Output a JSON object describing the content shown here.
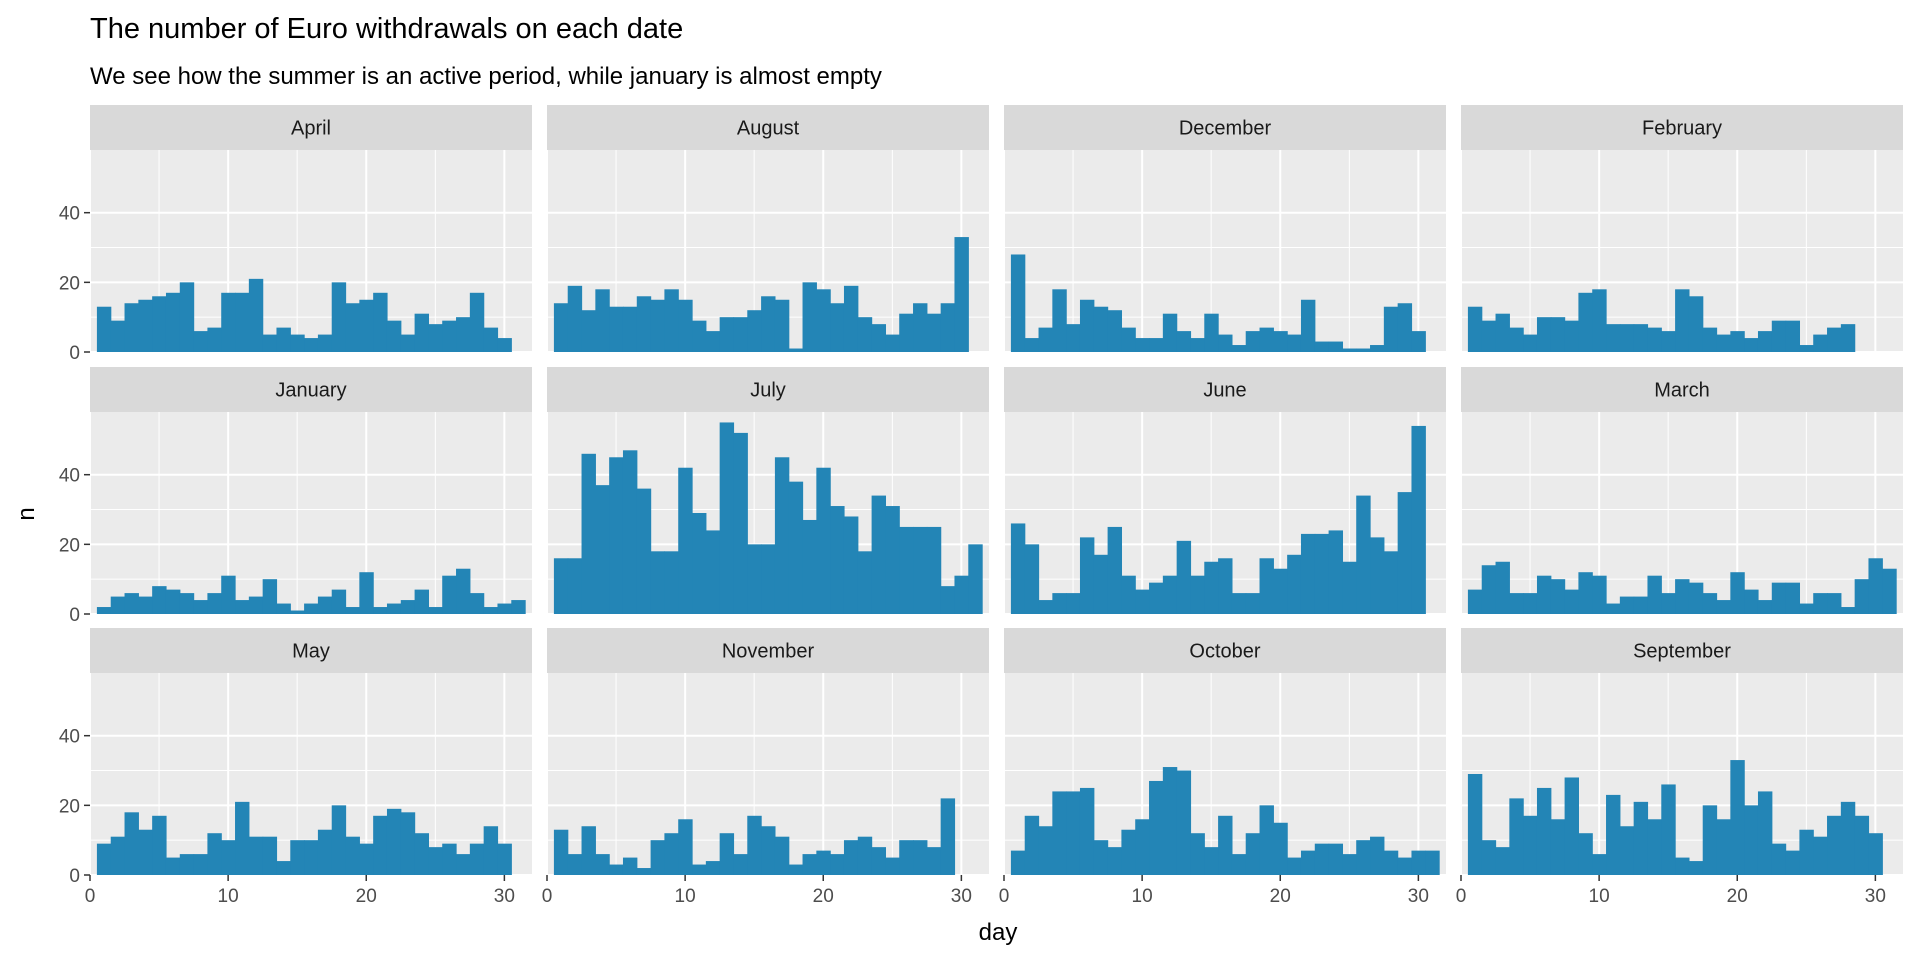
{
  "chart_data": {
    "type": "bar",
    "title": "The number of Euro withdrawals on each date",
    "subtitle": "We see how the summer is an active period, while january is almost empty",
    "xlabel": "day",
    "ylabel": "n",
    "xlim": [
      0,
      32
    ],
    "ylim": [
      0,
      58
    ],
    "x_ticks": [
      0,
      10,
      20,
      30
    ],
    "y_ticks": [
      0,
      20,
      40
    ],
    "grid": true,
    "bar_color": "#2385b6",
    "panel_background": "#ebebeb",
    "strip_background": "#d9d9d9",
    "panels": [
      {
        "name": "April",
        "days": [
          1,
          2,
          3,
          4,
          5,
          6,
          7,
          8,
          9,
          10,
          11,
          12,
          13,
          14,
          15,
          16,
          17,
          18,
          19,
          20,
          21,
          22,
          23,
          24,
          25,
          26,
          27,
          28,
          29,
          30
        ],
        "values": [
          13,
          9,
          14,
          15,
          16,
          17,
          20,
          6,
          7,
          17,
          17,
          21,
          5,
          7,
          5,
          4,
          5,
          20,
          14,
          15,
          17,
          9,
          5,
          11,
          8,
          9,
          10,
          17,
          7,
          4
        ]
      },
      {
        "name": "August",
        "days": [
          1,
          2,
          3,
          4,
          5,
          6,
          7,
          8,
          9,
          10,
          11,
          12,
          13,
          14,
          15,
          16,
          17,
          18,
          19,
          20,
          21,
          22,
          23,
          24,
          25,
          26,
          27,
          28,
          29,
          30,
          31
        ],
        "values": [
          14,
          19,
          12,
          18,
          13,
          13,
          16,
          15,
          18,
          15,
          9,
          6,
          10,
          10,
          12,
          16,
          15,
          1,
          20,
          18,
          14,
          19,
          10,
          8,
          5,
          11,
          14,
          11,
          14,
          33,
          0
        ]
      },
      {
        "name": "December",
        "days": [
          1,
          2,
          3,
          4,
          5,
          6,
          7,
          8,
          9,
          10,
          11,
          12,
          13,
          14,
          15,
          16,
          17,
          18,
          19,
          20,
          21,
          22,
          23,
          24,
          25,
          26,
          27,
          28,
          29,
          30
        ],
        "values": [
          28,
          4,
          7,
          18,
          8,
          15,
          13,
          12,
          7,
          4,
          4,
          11,
          6,
          4,
          11,
          5,
          2,
          6,
          7,
          6,
          5,
          15,
          3,
          3,
          1,
          1,
          2,
          13,
          14,
          6
        ]
      },
      {
        "name": "February",
        "days": [
          1,
          2,
          3,
          4,
          5,
          6,
          7,
          8,
          9,
          10,
          11,
          12,
          13,
          14,
          15,
          16,
          17,
          18,
          19,
          20,
          21,
          22,
          23,
          24,
          25,
          26,
          27,
          28
        ],
        "values": [
          13,
          9,
          11,
          7,
          5,
          10,
          10,
          9,
          17,
          18,
          8,
          8,
          8,
          7,
          6,
          18,
          16,
          7,
          5,
          6,
          4,
          6,
          9,
          9,
          2,
          5,
          7,
          8
        ]
      },
      {
        "name": "January",
        "days": [
          1,
          2,
          3,
          4,
          5,
          6,
          7,
          8,
          9,
          10,
          11,
          12,
          13,
          14,
          15,
          16,
          17,
          18,
          19,
          20,
          21,
          22,
          23,
          24,
          25,
          26,
          27,
          28,
          29,
          30,
          31
        ],
        "values": [
          2,
          5,
          6,
          5,
          8,
          7,
          6,
          4,
          6,
          11,
          4,
          5,
          10,
          3,
          1,
          3,
          5,
          7,
          2,
          12,
          2,
          3,
          4,
          7,
          2,
          11,
          13,
          6,
          2,
          3,
          4
        ]
      },
      {
        "name": "July",
        "days": [
          1,
          2,
          3,
          4,
          5,
          6,
          7,
          8,
          9,
          10,
          11,
          12,
          13,
          14,
          15,
          16,
          17,
          18,
          19,
          20,
          21,
          22,
          23,
          24,
          25,
          26,
          27,
          28,
          29,
          30,
          31
        ],
        "values": [
          16,
          16,
          46,
          37,
          45,
          47,
          36,
          18,
          18,
          42,
          29,
          24,
          55,
          52,
          20,
          20,
          45,
          38,
          27,
          42,
          31,
          28,
          18,
          34,
          31,
          25,
          25,
          25,
          8,
          11,
          20
        ]
      },
      {
        "name": "June",
        "days": [
          1,
          2,
          3,
          4,
          5,
          6,
          7,
          8,
          9,
          10,
          11,
          12,
          13,
          14,
          15,
          16,
          17,
          18,
          19,
          20,
          21,
          22,
          23,
          24,
          25,
          26,
          27,
          28,
          29,
          30
        ],
        "values": [
          26,
          20,
          4,
          6,
          6,
          22,
          17,
          25,
          11,
          7,
          9,
          11,
          21,
          11,
          15,
          16,
          6,
          6,
          16,
          13,
          17,
          23,
          23,
          24,
          15,
          34,
          22,
          18,
          35,
          54
        ]
      },
      {
        "name": "March",
        "days": [
          1,
          2,
          3,
          4,
          5,
          6,
          7,
          8,
          9,
          10,
          11,
          12,
          13,
          14,
          15,
          16,
          17,
          18,
          19,
          20,
          21,
          22,
          23,
          24,
          25,
          26,
          27,
          28,
          29,
          30,
          31
        ],
        "values": [
          7,
          14,
          15,
          6,
          6,
          11,
          10,
          7,
          12,
          11,
          3,
          5,
          5,
          11,
          6,
          10,
          9,
          6,
          4,
          12,
          7,
          4,
          9,
          9,
          3,
          6,
          6,
          2,
          10,
          16,
          13
        ]
      },
      {
        "name": "May",
        "days": [
          1,
          2,
          3,
          4,
          5,
          6,
          7,
          8,
          9,
          10,
          11,
          12,
          13,
          14,
          15,
          16,
          17,
          18,
          19,
          20,
          21,
          22,
          23,
          24,
          25,
          26,
          27,
          28,
          29,
          30,
          31
        ],
        "values": [
          9,
          11,
          18,
          13,
          17,
          5,
          6,
          6,
          12,
          10,
          21,
          11,
          11,
          4,
          10,
          10,
          13,
          20,
          11,
          9,
          17,
          19,
          18,
          12,
          8,
          9,
          6,
          9,
          14,
          9,
          0
        ]
      },
      {
        "name": "November",
        "days": [
          1,
          2,
          3,
          4,
          5,
          6,
          7,
          8,
          9,
          10,
          11,
          12,
          13,
          14,
          15,
          16,
          17,
          18,
          19,
          20,
          21,
          22,
          23,
          24,
          25,
          26,
          27,
          28,
          29,
          30
        ],
        "values": [
          13,
          6,
          14,
          6,
          3,
          5,
          2,
          10,
          12,
          16,
          3,
          4,
          12,
          6,
          17,
          14,
          11,
          3,
          6,
          7,
          6,
          10,
          11,
          8,
          5,
          10,
          10,
          8,
          22,
          0
        ]
      },
      {
        "name": "October",
        "days": [
          1,
          2,
          3,
          4,
          5,
          6,
          7,
          8,
          9,
          10,
          11,
          12,
          13,
          14,
          15,
          16,
          17,
          18,
          19,
          20,
          21,
          22,
          23,
          24,
          25,
          26,
          27,
          28,
          29,
          30,
          31
        ],
        "values": [
          7,
          17,
          14,
          24,
          24,
          25,
          10,
          8,
          13,
          16,
          27,
          31,
          30,
          12,
          8,
          17,
          6,
          12,
          20,
          15,
          5,
          7,
          9,
          9,
          6,
          10,
          11,
          7,
          5,
          7,
          7
        ]
      },
      {
        "name": "September",
        "days": [
          1,
          2,
          3,
          4,
          5,
          6,
          7,
          8,
          9,
          10,
          11,
          12,
          13,
          14,
          15,
          16,
          17,
          18,
          19,
          20,
          21,
          22,
          23,
          24,
          25,
          26,
          27,
          28,
          29,
          30
        ],
        "values": [
          29,
          10,
          8,
          22,
          17,
          25,
          16,
          28,
          12,
          6,
          23,
          14,
          21,
          16,
          26,
          5,
          4,
          20,
          16,
          33,
          20,
          24,
          9,
          7,
          13,
          11,
          17,
          21,
          17,
          12
        ]
      }
    ]
  }
}
